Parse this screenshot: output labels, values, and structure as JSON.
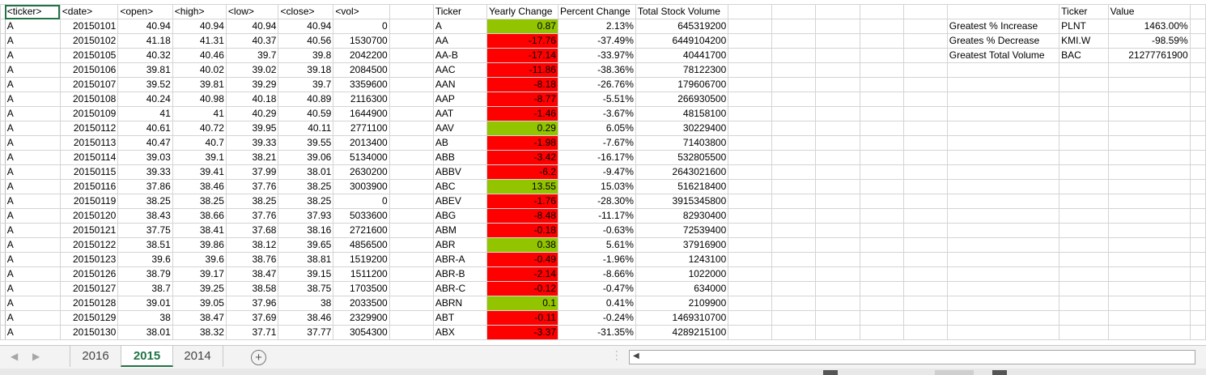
{
  "sheet": {
    "source_headers": [
      "<ticker>",
      "<date>",
      "<open>",
      "<high>",
      "<low>",
      "<close>",
      "<vol>"
    ],
    "source_rows": [
      [
        "A",
        "20150101",
        "40.94",
        "40.94",
        "40.94",
        "40.94",
        "0"
      ],
      [
        "A",
        "20150102",
        "41.18",
        "41.31",
        "40.37",
        "40.56",
        "1530700"
      ],
      [
        "A",
        "20150105",
        "40.32",
        "40.46",
        "39.7",
        "39.8",
        "2042200"
      ],
      [
        "A",
        "20150106",
        "39.81",
        "40.02",
        "39.02",
        "39.18",
        "2084500"
      ],
      [
        "A",
        "20150107",
        "39.52",
        "39.81",
        "39.29",
        "39.7",
        "3359600"
      ],
      [
        "A",
        "20150108",
        "40.24",
        "40.98",
        "40.18",
        "40.89",
        "2116300"
      ],
      [
        "A",
        "20150109",
        "41",
        "41",
        "40.29",
        "40.59",
        "1644900"
      ],
      [
        "A",
        "20150112",
        "40.61",
        "40.72",
        "39.95",
        "40.11",
        "2771100"
      ],
      [
        "A",
        "20150113",
        "40.47",
        "40.7",
        "39.33",
        "39.55",
        "2013400"
      ],
      [
        "A",
        "20150114",
        "39.03",
        "39.1",
        "38.21",
        "39.06",
        "5134000"
      ],
      [
        "A",
        "20150115",
        "39.33",
        "39.41",
        "37.99",
        "38.01",
        "2630200"
      ],
      [
        "A",
        "20150116",
        "37.86",
        "38.46",
        "37.76",
        "38.25",
        "3003900"
      ],
      [
        "A",
        "20150119",
        "38.25",
        "38.25",
        "38.25",
        "38.25",
        "0"
      ],
      [
        "A",
        "20150120",
        "38.43",
        "38.66",
        "37.76",
        "37.93",
        "5033600"
      ],
      [
        "A",
        "20150121",
        "37.75",
        "38.41",
        "37.68",
        "38.16",
        "2721600"
      ],
      [
        "A",
        "20150122",
        "38.51",
        "39.86",
        "38.12",
        "39.65",
        "4856500"
      ],
      [
        "A",
        "20150123",
        "39.6",
        "39.6",
        "38.76",
        "38.81",
        "1519200"
      ],
      [
        "A",
        "20150126",
        "38.79",
        "39.17",
        "38.47",
        "39.15",
        "1511200"
      ],
      [
        "A",
        "20150127",
        "38.7",
        "39.25",
        "38.58",
        "38.75",
        "1703500"
      ],
      [
        "A",
        "20150128",
        "39.01",
        "39.05",
        "37.96",
        "38",
        "2033500"
      ],
      [
        "A",
        "20150129",
        "38",
        "38.47",
        "37.69",
        "38.46",
        "2329900"
      ],
      [
        "A",
        "20150130",
        "38.01",
        "38.32",
        "37.71",
        "37.77",
        "3054300"
      ]
    ],
    "summary_headers": [
      "Ticker",
      "Yearly Change",
      "Percent Change",
      "Total Stock Volume"
    ],
    "summary_rows": [
      {
        "ticker": "A",
        "change": "0.87",
        "percent": "2.13%",
        "volume": "645319200",
        "positive": true
      },
      {
        "ticker": "AA",
        "change": "-17.76",
        "percent": "-37.49%",
        "volume": "6449104200",
        "positive": false
      },
      {
        "ticker": "AA-B",
        "change": "-17.14",
        "percent": "-33.97%",
        "volume": "40441700",
        "positive": false
      },
      {
        "ticker": "AAC",
        "change": "-11.86",
        "percent": "-38.36%",
        "volume": "78122300",
        "positive": false
      },
      {
        "ticker": "AAN",
        "change": "-8.18",
        "percent": "-26.76%",
        "volume": "179606700",
        "positive": false
      },
      {
        "ticker": "AAP",
        "change": "-8.77",
        "percent": "-5.51%",
        "volume": "266930500",
        "positive": false
      },
      {
        "ticker": "AAT",
        "change": "-1.46",
        "percent": "-3.67%",
        "volume": "48158100",
        "positive": false
      },
      {
        "ticker": "AAV",
        "change": "0.29",
        "percent": "6.05%",
        "volume": "30229400",
        "positive": true
      },
      {
        "ticker": "AB",
        "change": "-1.98",
        "percent": "-7.67%",
        "volume": "71403800",
        "positive": false
      },
      {
        "ticker": "ABB",
        "change": "-3.42",
        "percent": "-16.17%",
        "volume": "532805500",
        "positive": false
      },
      {
        "ticker": "ABBV",
        "change": "-6.2",
        "percent": "-9.47%",
        "volume": "2643021600",
        "positive": false
      },
      {
        "ticker": "ABC",
        "change": "13.55",
        "percent": "15.03%",
        "volume": "516218400",
        "positive": true
      },
      {
        "ticker": "ABEV",
        "change": "-1.76",
        "percent": "-28.30%",
        "volume": "3915345800",
        "positive": false
      },
      {
        "ticker": "ABG",
        "change": "-8.48",
        "percent": "-11.17%",
        "volume": "82930400",
        "positive": false
      },
      {
        "ticker": "ABM",
        "change": "-0.18",
        "percent": "-0.63%",
        "volume": "72539400",
        "positive": false
      },
      {
        "ticker": "ABR",
        "change": "0.38",
        "percent": "5.61%",
        "volume": "37916900",
        "positive": true
      },
      {
        "ticker": "ABR-A",
        "change": "-0.49",
        "percent": "-1.96%",
        "volume": "1243100",
        "positive": false
      },
      {
        "ticker": "ABR-B",
        "change": "-2.14",
        "percent": "-8.66%",
        "volume": "1022000",
        "positive": false
      },
      {
        "ticker": "ABR-C",
        "change": "-0.12",
        "percent": "-0.47%",
        "volume": "634000",
        "positive": false
      },
      {
        "ticker": "ABRN",
        "change": "0.1",
        "percent": "0.41%",
        "volume": "2109900",
        "positive": true
      },
      {
        "ticker": "ABT",
        "change": "-0.11",
        "percent": "-0.24%",
        "volume": "1469310700",
        "positive": false
      },
      {
        "ticker": "ABX",
        "change": "-3.37",
        "percent": "-31.35%",
        "volume": "4289215100",
        "positive": false
      }
    ],
    "greatest_headers": [
      "Ticker",
      "Value"
    ],
    "greatest_rows": [
      {
        "label": "Greatest % Increase",
        "ticker": "PLNT",
        "value": "1463.00%"
      },
      {
        "label": "Greates % Decrease",
        "ticker": "KMI.W",
        "value": "-98.59%"
      },
      {
        "label": "Greatest Total Volume",
        "ticker": "BAC",
        "value": "21277761900"
      }
    ]
  },
  "tabs": [
    "2016",
    "2015",
    "2014"
  ],
  "active_tab": "2015",
  "colors": {
    "positive": "#92c400",
    "negative": "#ff0000",
    "accent": "#217346"
  },
  "icons": {
    "add_sheet": "plus-circle-icon",
    "tab_prev": "chevron-left-icon",
    "tab_next": "chevron-right-icon",
    "scroll_left": "scroll-left-arrow-icon"
  }
}
